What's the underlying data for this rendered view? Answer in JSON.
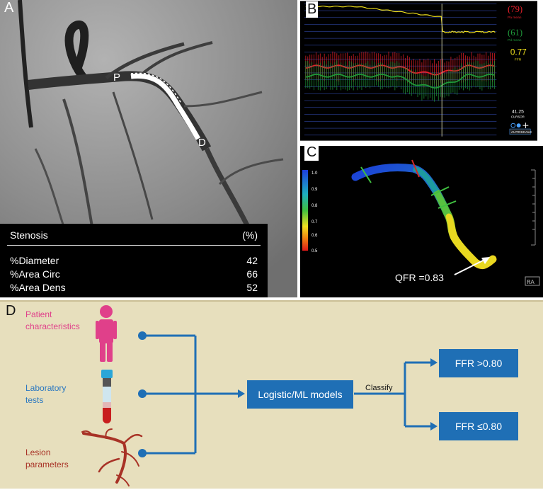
{
  "panels": {
    "a": "A",
    "b": "B",
    "c": "C",
    "d": "D"
  },
  "panel_a": {
    "marker_p": "P",
    "marker_d": "D",
    "table": {
      "header_label": "Stenosis",
      "header_unit": "(%)",
      "rows": [
        {
          "label": "%Diameter",
          "value": "42"
        },
        {
          "label": "%Area Circ",
          "value": "66"
        },
        {
          "label": "%Area Dens",
          "value": "52"
        }
      ]
    }
  },
  "panel_b": {
    "pa_value": "(79)",
    "pa_label": "Pa mean",
    "pd_value": "(61)",
    "pd_label": "Pd mean",
    "ffr_value": "0.77",
    "ffr_label": "FFR",
    "cursor_value": "41.25",
    "cursor_label": "CURSOR",
    "autoscale_label": "AUTOSCALE",
    "colors": {
      "pa": "#e8202a",
      "pd": "#1f9a3a",
      "ffr": "#f2e21c",
      "background": "#000000",
      "grid": "#3a55c8"
    }
  },
  "panel_c": {
    "qfr_text": "QFR =0.83",
    "scale_ticks": [
      "1.0",
      "0.9",
      "0.8",
      "0.7",
      "0.6",
      "0.5"
    ],
    "view_badge": "RA"
  },
  "panel_d": {
    "inputs": [
      {
        "label": "Patient\ncharacteristics",
        "icon": "person-icon",
        "color": "#e0408a"
      },
      {
        "label": "Laboratory\ntests",
        "icon": "test-tube-icon",
        "color": "#2b78c0"
      },
      {
        "label": "Lesion\nparameters",
        "icon": "vessel-tree-icon",
        "color": "#a83226"
      }
    ],
    "model_label": "Logistic/ML models",
    "classify_label": "Classify",
    "outputs": [
      "FFR >0.80",
      "FFR ≤0.80"
    ],
    "colors": {
      "box": "#1f6fb5",
      "background": "#e7dfbd"
    }
  }
}
